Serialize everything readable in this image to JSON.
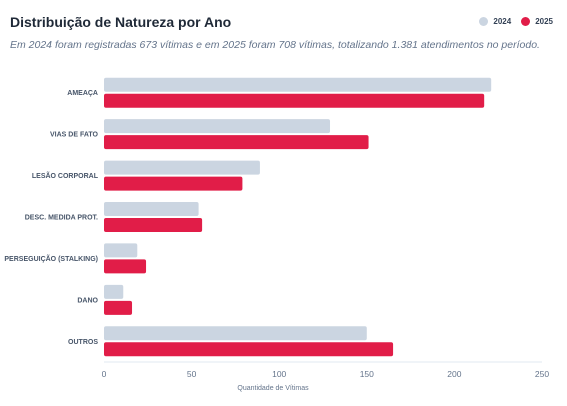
{
  "chart_data": {
    "type": "bar",
    "orientation": "horizontal",
    "title": "Distribuição de Natureza por Ano",
    "subtitle": "Em 2024 foram registradas 673 vítimas e em 2025 foram 708 vítimas, totalizando 1.381 atendimentos no período.",
    "categories": [
      "AMEAÇA",
      "VIAS DE FATO",
      "LESÃO CORPORAL",
      "DESC. MEDIDA PROT.",
      "PERSEGUIÇÃO (STALKING)",
      "DANO",
      "OUTROS"
    ],
    "series": [
      {
        "name": "2024",
        "color": "#cbd5e1",
        "values": [
          221,
          129,
          89,
          54,
          19,
          11,
          150
        ]
      },
      {
        "name": "2025",
        "color": "#e11d48",
        "values": [
          217,
          151,
          79,
          56,
          24,
          16,
          165
        ]
      }
    ],
    "xlabel": "Quantidade de Vítimas",
    "xlim": [
      0,
      250
    ],
    "xticks": [
      "0",
      "50",
      "100",
      "150",
      "200",
      "250"
    ],
    "legend_position": "top-right",
    "grid": false
  }
}
